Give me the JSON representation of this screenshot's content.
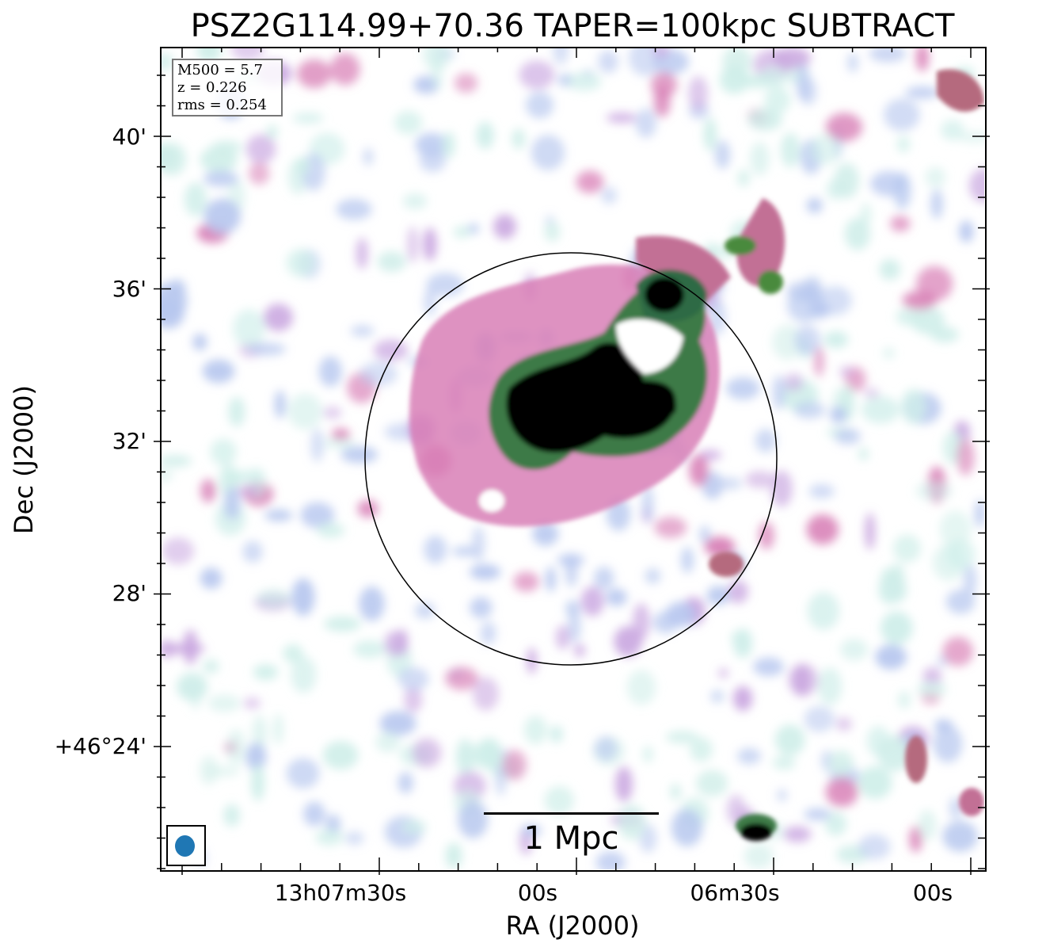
{
  "title": "PSZ2G114.99+70.36 TAPER=100kpc SUBTRACT",
  "axes": {
    "xlabel": "RA (J2000)",
    "ylabel": "Dec (J2000)",
    "xticks": [
      "13h07m30s",
      "00s",
      "06m30s",
      "00s"
    ],
    "yticks": [
      "40'",
      "36'",
      "32'",
      "28'",
      "+46°24'"
    ]
  },
  "info": {
    "m500": "M500 = 5.7",
    "z": "z = 0.226",
    "rms": "rms = 0.254"
  },
  "scalebar": {
    "label": "1 Mpc"
  },
  "beam": {
    "color": "#1f77b4"
  },
  "colormap": [
    "#ffffff",
    "#cfeee9",
    "#b8c8ef",
    "#c9a6e0",
    "#d87fb6",
    "#b56a7e",
    "#5f8a4c",
    "#2f6b45",
    "#000000"
  ]
}
